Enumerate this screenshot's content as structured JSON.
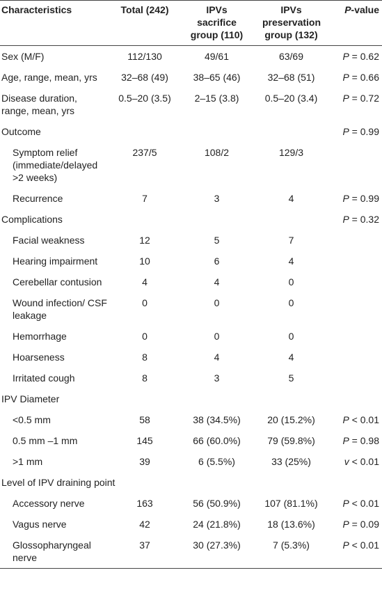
{
  "table": {
    "header": [
      "Characteristics",
      "Total (242)",
      "IPVs sacrifice group (110)",
      "IPVs preservation group (132)",
      "P-value"
    ],
    "groups": [
      {
        "rows": [
          [
            "Sex (M/F)",
            "112/130",
            "49/61",
            "63/69",
            "P = 0.62"
          ],
          [
            "Age, range, mean, yrs",
            "32–68 (49)",
            "38–65 (46)",
            "32–68 (51)",
            "P = 0.66"
          ],
          [
            "Disease duration, range, mean, yrs",
            "0.5–20 (3.5)",
            "2–15 (3.8)",
            "0.5–20 (3.4)",
            "P = 0.72"
          ]
        ]
      },
      {
        "title": "Outcome",
        "p_value": "P = 0.99",
        "rows": [
          [
            "Symptom relief (immediate/delayed >2 weeks)",
            "237/5",
            "108/2",
            "129/3",
            null
          ],
          [
            "Recurrence",
            "7",
            "3",
            "4",
            "P = 0.99"
          ]
        ]
      },
      {
        "title": "Complications",
        "p_value": "P = 0.32",
        "rows": [
          [
            "Facial weakness",
            "12",
            "5",
            "7",
            null
          ],
          [
            "Hearing impairment",
            "10",
            "6",
            "4",
            null
          ],
          [
            "Cerebellar contusion",
            "4",
            "4",
            "0",
            null
          ],
          [
            "Wound infection/ CSF leakage",
            "0",
            "0",
            "0",
            null
          ],
          [
            "Hemorrhage",
            "0",
            "0",
            "0",
            null
          ],
          [
            "Hoarseness",
            "8",
            "4",
            "4",
            null
          ],
          [
            "Irritated cough",
            "8",
            "3",
            "5",
            null
          ]
        ]
      },
      {
        "title": "IPV Diameter",
        "rows": [
          [
            "<0.5 mm",
            "58",
            "38 (34.5%)",
            "20 (15.2%)",
            "P < 0.01"
          ],
          [
            "0.5 mm –1 mm",
            "145",
            "66 (60.0%)",
            "79 (59.8%)",
            "P = 0.98"
          ],
          [
            ">1 mm",
            "39",
            "6 (5.5%)",
            "33 (25%)",
            "v < 0.01"
          ]
        ]
      },
      {
        "title": "Level of IPV draining point",
        "rows": [
          [
            "Accessory nerve",
            "163",
            "56 (50.9%)",
            "107 (81.1%)",
            "P < 0.01"
          ],
          [
            "Vagus nerve",
            "42",
            "24 (21.8%)",
            "18 (13.6%)",
            "P = 0.09"
          ],
          [
            "Glossopharyngeal nerve",
            "37",
            "30 (27.3%)",
            "7 (5.3%)",
            "P < 0.01"
          ]
        ]
      }
    ]
  }
}
